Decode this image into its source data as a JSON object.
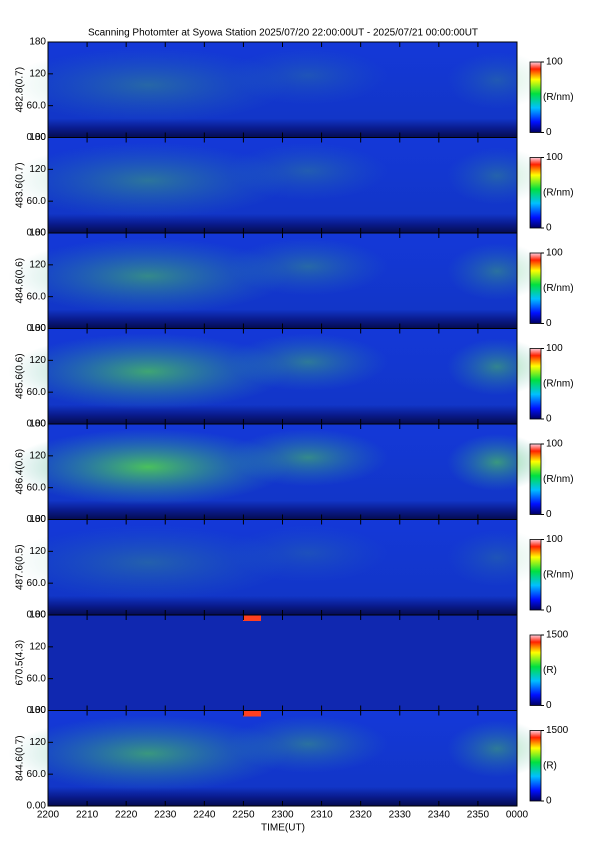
{
  "title": "Scanning Photomter at Syowa Station 2025/07/20 22:00:00UT - 2025/07/21 00:00:00UT",
  "xlabel": "TIME(UT)",
  "xticks": [
    "2200",
    "2210",
    "2220",
    "2230",
    "2240",
    "2250",
    "2300",
    "2310",
    "2320",
    "2330",
    "2340",
    "2350",
    "0000"
  ],
  "chart_data": [
    {
      "type": "heatmap",
      "ylabel": "482.8(0.7)",
      "ylim": [
        0,
        180
      ],
      "yticks": [
        {
          "value": 0,
          "label": "0.00"
        },
        {
          "value": 60,
          "label": "60.0"
        },
        120,
        180
      ],
      "colorbar": {
        "label": "(R/nm)",
        "lim": [
          0,
          100
        ],
        "ticks": [
          0,
          100
        ]
      }
    },
    {
      "type": "heatmap",
      "ylabel": "483.6(0.7)",
      "ylim": [
        0,
        180
      ],
      "yticks": [
        {
          "value": 0,
          "label": "0.00"
        },
        {
          "value": 60,
          "label": "60.0"
        },
        120,
        180
      ],
      "colorbar": {
        "label": "(R/nm)",
        "lim": [
          0,
          100
        ],
        "ticks": [
          0,
          100
        ]
      }
    },
    {
      "type": "heatmap",
      "ylabel": "484.6(0.6)",
      "ylim": [
        0,
        180
      ],
      "yticks": [
        {
          "value": 0,
          "label": "0.00"
        },
        {
          "value": 60,
          "label": "60.0"
        },
        120,
        180
      ],
      "colorbar": {
        "label": "(R/nm)",
        "lim": [
          0,
          100
        ],
        "ticks": [
          0,
          100
        ]
      }
    },
    {
      "type": "heatmap",
      "ylabel": "485.6(0.6)",
      "ylim": [
        0,
        180
      ],
      "yticks": [
        {
          "value": 0,
          "label": "0.00"
        },
        {
          "value": 60,
          "label": "60.0"
        },
        120,
        180
      ],
      "colorbar": {
        "label": "(R/nm)",
        "lim": [
          0,
          100
        ],
        "ticks": [
          0,
          100
        ]
      }
    },
    {
      "type": "heatmap",
      "ylabel": "486.4(0.6)",
      "ylim": [
        0,
        180
      ],
      "yticks": [
        {
          "value": 0,
          "label": "0.00"
        },
        {
          "value": 60,
          "label": "60.0"
        },
        120,
        180
      ],
      "colorbar": {
        "label": "(R/nm)",
        "lim": [
          0,
          100
        ],
        "ticks": [
          0,
          100
        ]
      }
    },
    {
      "type": "heatmap",
      "ylabel": "487.6(0.5)",
      "ylim": [
        0,
        180
      ],
      "yticks": [
        {
          "value": 0,
          "label": "0.00"
        },
        {
          "value": 60,
          "label": "60.0"
        },
        120,
        180
      ],
      "colorbar": {
        "label": "(R/nm)",
        "lim": [
          0,
          100
        ],
        "ticks": [
          0,
          100
        ]
      }
    },
    {
      "type": "heatmap",
      "ylabel": "670.5(4.3)",
      "ylim": [
        0,
        180
      ],
      "yticks": [
        {
          "value": 0,
          "label": "0.00"
        },
        {
          "value": 60,
          "label": "60.0"
        },
        120,
        180
      ],
      "colorbar": {
        "label": "(R)",
        "lim": [
          0,
          1500
        ],
        "ticks": [
          0,
          1500
        ]
      }
    },
    {
      "type": "heatmap",
      "ylabel": "844.6(0.7)",
      "ylim": [
        0,
        180
      ],
      "yticks": [
        {
          "value": 0,
          "label": "0.00"
        },
        {
          "value": 60,
          "label": "60.0"
        },
        120,
        180
      ],
      "colorbar": {
        "label": "(R)",
        "lim": [
          0,
          1500
        ],
        "ticks": [
          0,
          1500
        ]
      }
    }
  ]
}
